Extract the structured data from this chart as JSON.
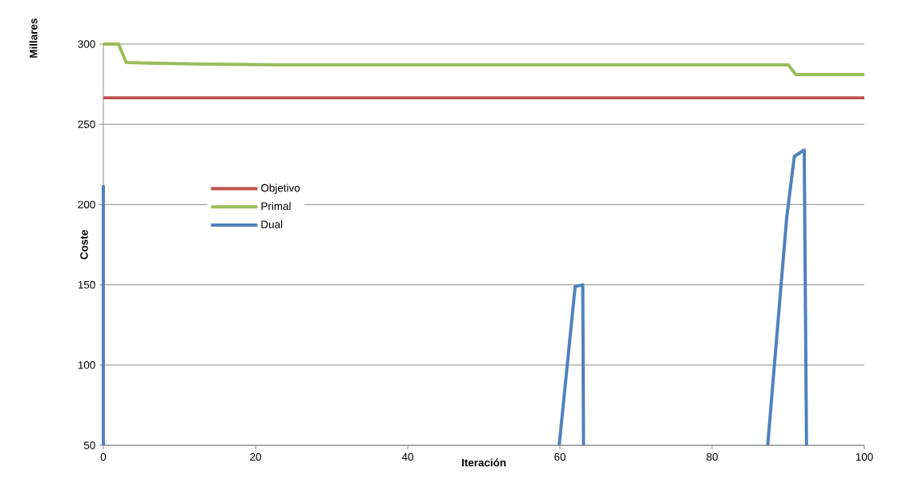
{
  "chart_data": {
    "type": "line",
    "xlabel": "Iteración",
    "ylabel": "Coste",
    "annotations": [
      "Millares"
    ],
    "xlim": [
      0,
      100
    ],
    "xticks": [
      0,
      20,
      40,
      60,
      80,
      100
    ],
    "ylim": [
      50,
      300
    ],
    "yticks": [
      50,
      100,
      150,
      200,
      250,
      300
    ],
    "grid": "y",
    "legend": "left",
    "marker": "none",
    "line_style": "solid",
    "series": [
      {
        "name": "Objetivo",
        "color": "#c0504d",
        "x": [
          0,
          100
        ],
        "values": [
          266.5,
          266.5
        ]
      },
      {
        "name": "Primal",
        "color": "#9bbb59",
        "x": [
          0,
          2,
          3,
          7,
          14,
          23,
          90,
          91,
          100
        ],
        "values": [
          300,
          300,
          288.5,
          288,
          287.5,
          287,
          287,
          281,
          281
        ]
      },
      {
        "name": "Dual",
        "color": "#4f81bd",
        "x": [
          0,
          0,
          null,
          59.9,
          62,
          63,
          63.1,
          null,
          87.3,
          89.8,
          90.8,
          92.1,
          92.4
        ],
        "values": [
          212,
          50,
          null,
          50,
          149,
          150,
          50,
          null,
          50,
          192,
          230,
          234,
          50
        ]
      }
    ]
  }
}
